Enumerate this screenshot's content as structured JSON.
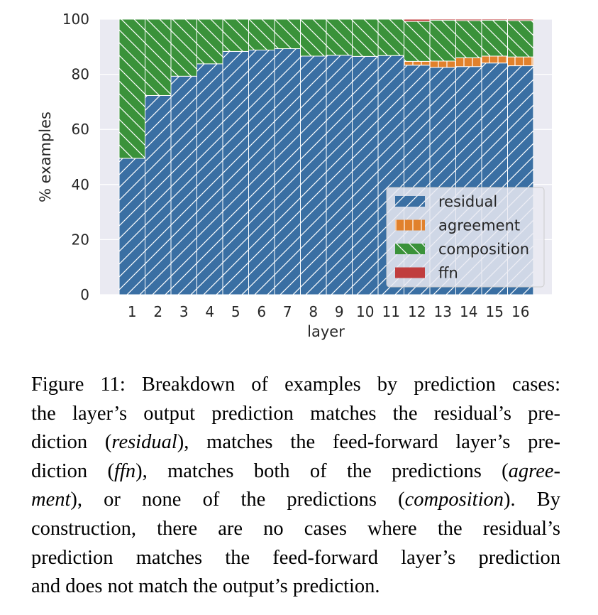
{
  "chart_data": {
    "type": "bar",
    "stacked": true,
    "categories": [
      "1",
      "2",
      "3",
      "4",
      "5",
      "6",
      "7",
      "8",
      "9",
      "10",
      "11",
      "12",
      "13",
      "14",
      "15",
      "16"
    ],
    "xlabel": "layer",
    "ylabel": "% examples",
    "ylim": [
      0,
      100
    ],
    "yticks": [
      0,
      20,
      40,
      60,
      80,
      100
    ],
    "grid": true,
    "legend_position": "lower-right",
    "series": [
      {
        "name": "residual",
        "color": "#3a6fa3",
        "values": [
          49.5,
          72.3,
          79.3,
          83.8,
          88.3,
          88.8,
          89.3,
          86.6,
          86.9,
          86.5,
          86.8,
          83.3,
          82.5,
          82.8,
          84.1,
          83.1
        ]
      },
      {
        "name": "agreement",
        "color": "#e1812c",
        "values": [
          0,
          0,
          0,
          0,
          0,
          0,
          0,
          0,
          0,
          0,
          0,
          1.4,
          2.3,
          3.2,
          2.5,
          3.2
        ]
      },
      {
        "name": "composition",
        "color": "#3a923a",
        "values": [
          50.5,
          27.7,
          20.7,
          16.2,
          11.7,
          11.2,
          10.7,
          13.4,
          13.1,
          13.5,
          13.2,
          14.5,
          14.8,
          13.5,
          13.0,
          13.2
        ]
      },
      {
        "name": "ffn",
        "color": "#c03d3e",
        "values": [
          0,
          0,
          0,
          0,
          0,
          0,
          0,
          0,
          0,
          0,
          0,
          0.8,
          0.4,
          0.5,
          0.4,
          0.5
        ]
      }
    ]
  },
  "caption": {
    "lines": [
      "Figure 11: Breakdown of examples by prediction cases:",
      "the layer’s output prediction matches the residual’s pre-",
      "diction (residual), matches the feed-forward layer’s pre-",
      "diction (ffn), matches both of the predictions (agree-",
      "ment), or none of the predictions (composition). By",
      "construction, there are no cases where the residual’s",
      "prediction matches the feed-forward layer’s prediction",
      "and does not match the output’s prediction."
    ]
  }
}
